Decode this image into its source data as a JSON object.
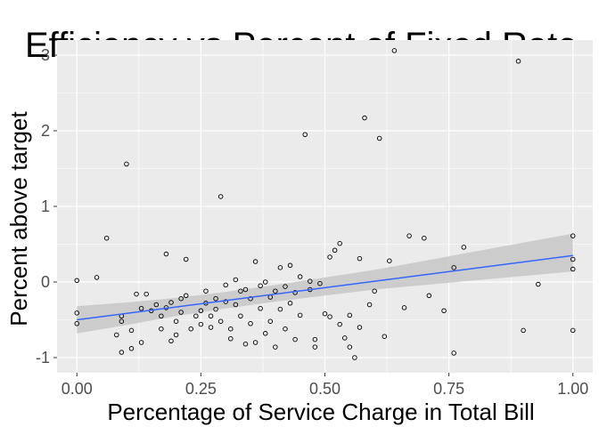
{
  "chart_data": {
    "type": "scatter",
    "title": "Efficiency vs Percent of Fixed Rate",
    "xlabel": "Percentage of Service Charge in Total Bill",
    "ylabel": "Percent above target",
    "xlim": [
      -0.04,
      1.04
    ],
    "ylim": [
      -1.2,
      3.2
    ],
    "x_ticks": [
      0,
      0.25,
      0.5,
      0.75,
      1
    ],
    "x_tick_labels": [
      "0.00",
      "0.25",
      "0.50",
      "0.75",
      "1.00"
    ],
    "y_ticks": [
      -1,
      0,
      1,
      2,
      3
    ],
    "y_tick_labels": [
      "-1",
      "0",
      "1",
      "2",
      "3"
    ],
    "grid": true,
    "panel_color": "#ebebeb",
    "point_color": "#000000",
    "trend_color": "#3366ff",
    "ribbon_color": "#c7c7c7",
    "points": [
      {
        "x": 0.0,
        "y": 0.02
      },
      {
        "x": 0.0,
        "y": -0.41
      },
      {
        "x": 0.0,
        "y": -0.55
      },
      {
        "x": 0.04,
        "y": 0.06
      },
      {
        "x": 0.06,
        "y": 0.58
      },
      {
        "x": 0.08,
        "y": -0.7
      },
      {
        "x": 0.09,
        "y": -0.52
      },
      {
        "x": 0.09,
        "y": -0.45
      },
      {
        "x": 0.09,
        "y": -0.93
      },
      {
        "x": 0.1,
        "y": 1.56
      },
      {
        "x": 0.11,
        "y": -0.88
      },
      {
        "x": 0.11,
        "y": -0.64
      },
      {
        "x": 0.12,
        "y": -0.16
      },
      {
        "x": 0.13,
        "y": -0.35
      },
      {
        "x": 0.13,
        "y": -0.8
      },
      {
        "x": 0.14,
        "y": -0.16
      },
      {
        "x": 0.15,
        "y": -0.38
      },
      {
        "x": 0.16,
        "y": -0.3
      },
      {
        "x": 0.17,
        "y": -0.45
      },
      {
        "x": 0.17,
        "y": -0.62
      },
      {
        "x": 0.18,
        "y": 0.37
      },
      {
        "x": 0.18,
        "y": -0.34
      },
      {
        "x": 0.19,
        "y": -0.27
      },
      {
        "x": 0.19,
        "y": -0.78
      },
      {
        "x": 0.2,
        "y": -0.7
      },
      {
        "x": 0.2,
        "y": -0.52
      },
      {
        "x": 0.21,
        "y": -0.22
      },
      {
        "x": 0.21,
        "y": -0.4
      },
      {
        "x": 0.22,
        "y": 0.3
      },
      {
        "x": 0.22,
        "y": -0.18
      },
      {
        "x": 0.23,
        "y": -0.62
      },
      {
        "x": 0.24,
        "y": -0.45
      },
      {
        "x": 0.25,
        "y": -0.56
      },
      {
        "x": 0.25,
        "y": -0.38
      },
      {
        "x": 0.26,
        "y": -0.28
      },
      {
        "x": 0.26,
        "y": -0.12
      },
      {
        "x": 0.27,
        "y": -0.6
      },
      {
        "x": 0.27,
        "y": -0.45
      },
      {
        "x": 0.28,
        "y": -0.22
      },
      {
        "x": 0.28,
        "y": -0.36
      },
      {
        "x": 0.29,
        "y": -0.52
      },
      {
        "x": 0.29,
        "y": 1.13
      },
      {
        "x": 0.3,
        "y": -0.04
      },
      {
        "x": 0.3,
        "y": -0.26
      },
      {
        "x": 0.31,
        "y": -0.75
      },
      {
        "x": 0.31,
        "y": -0.62
      },
      {
        "x": 0.32,
        "y": 0.03
      },
      {
        "x": 0.32,
        "y": -0.3
      },
      {
        "x": 0.33,
        "y": -0.12
      },
      {
        "x": 0.33,
        "y": -0.45
      },
      {
        "x": 0.34,
        "y": -0.82
      },
      {
        "x": 0.34,
        "y": -0.1
      },
      {
        "x": 0.35,
        "y": -0.22
      },
      {
        "x": 0.35,
        "y": -0.55
      },
      {
        "x": 0.36,
        "y": 0.27
      },
      {
        "x": 0.36,
        "y": -0.8
      },
      {
        "x": 0.37,
        "y": -0.35
      },
      {
        "x": 0.37,
        "y": -0.05
      },
      {
        "x": 0.38,
        "y": -0.68
      },
      {
        "x": 0.38,
        "y": 0.0
      },
      {
        "x": 0.39,
        "y": -0.2
      },
      {
        "x": 0.39,
        "y": -0.52
      },
      {
        "x": 0.4,
        "y": -0.86
      },
      {
        "x": 0.4,
        "y": -0.12
      },
      {
        "x": 0.41,
        "y": -0.36
      },
      {
        "x": 0.41,
        "y": 0.19
      },
      {
        "x": 0.42,
        "y": -0.62
      },
      {
        "x": 0.42,
        "y": -0.06
      },
      {
        "x": 0.43,
        "y": -0.28
      },
      {
        "x": 0.43,
        "y": 0.22
      },
      {
        "x": 0.44,
        "y": -0.14
      },
      {
        "x": 0.44,
        "y": -0.76
      },
      {
        "x": 0.45,
        "y": 0.07
      },
      {
        "x": 0.45,
        "y": -0.44
      },
      {
        "x": 0.46,
        "y": 1.95
      },
      {
        "x": 0.47,
        "y": -0.1
      },
      {
        "x": 0.47,
        "y": 0.01
      },
      {
        "x": 0.48,
        "y": -0.76
      },
      {
        "x": 0.48,
        "y": -0.86
      },
      {
        "x": 0.49,
        "y": -0.02
      },
      {
        "x": 0.5,
        "y": -0.42
      },
      {
        "x": 0.51,
        "y": 0.33
      },
      {
        "x": 0.51,
        "y": -0.46
      },
      {
        "x": 0.52,
        "y": 0.42
      },
      {
        "x": 0.53,
        "y": 0.51
      },
      {
        "x": 0.53,
        "y": -0.56
      },
      {
        "x": 0.54,
        "y": -0.74
      },
      {
        "x": 0.55,
        "y": -0.44
      },
      {
        "x": 0.55,
        "y": -0.86
      },
      {
        "x": 0.56,
        "y": -1.0
      },
      {
        "x": 0.57,
        "y": 0.31
      },
      {
        "x": 0.57,
        "y": -0.6
      },
      {
        "x": 0.58,
        "y": 2.17
      },
      {
        "x": 0.59,
        "y": -0.3
      },
      {
        "x": 0.6,
        "y": -0.12
      },
      {
        "x": 0.61,
        "y": 1.9
      },
      {
        "x": 0.62,
        "y": -0.72
      },
      {
        "x": 0.63,
        "y": 0.28
      },
      {
        "x": 0.64,
        "y": 3.06
      },
      {
        "x": 0.66,
        "y": -0.34
      },
      {
        "x": 0.67,
        "y": 0.61
      },
      {
        "x": 0.7,
        "y": 0.58
      },
      {
        "x": 0.71,
        "y": -0.18
      },
      {
        "x": 0.74,
        "y": -0.38
      },
      {
        "x": 0.76,
        "y": 0.19
      },
      {
        "x": 0.76,
        "y": -0.94
      },
      {
        "x": 0.78,
        "y": 0.46
      },
      {
        "x": 0.89,
        "y": 2.92
      },
      {
        "x": 0.9,
        "y": -0.64
      },
      {
        "x": 0.93,
        "y": -0.03
      },
      {
        "x": 1.0,
        "y": 0.61
      },
      {
        "x": 1.0,
        "y": 0.3
      },
      {
        "x": 1.0,
        "y": 0.17
      },
      {
        "x": 1.0,
        "y": -0.64
      }
    ],
    "trend": {
      "x": [
        0,
        1
      ],
      "y": [
        -0.5,
        0.35
      ]
    },
    "ribbon": {
      "x": [
        0,
        0.1,
        0.2,
        0.3,
        0.4,
        0.5,
        0.6,
        0.7,
        0.8,
        0.9,
        1.0
      ],
      "upper": [
        -0.32,
        -0.27,
        -0.21,
        -0.13,
        -0.04,
        0.06,
        0.16,
        0.28,
        0.4,
        0.52,
        0.64
      ],
      "lower": [
        -0.68,
        -0.57,
        -0.45,
        -0.35,
        -0.26,
        -0.18,
        -0.1,
        -0.04,
        0.02,
        0.08,
        0.14
      ]
    }
  }
}
